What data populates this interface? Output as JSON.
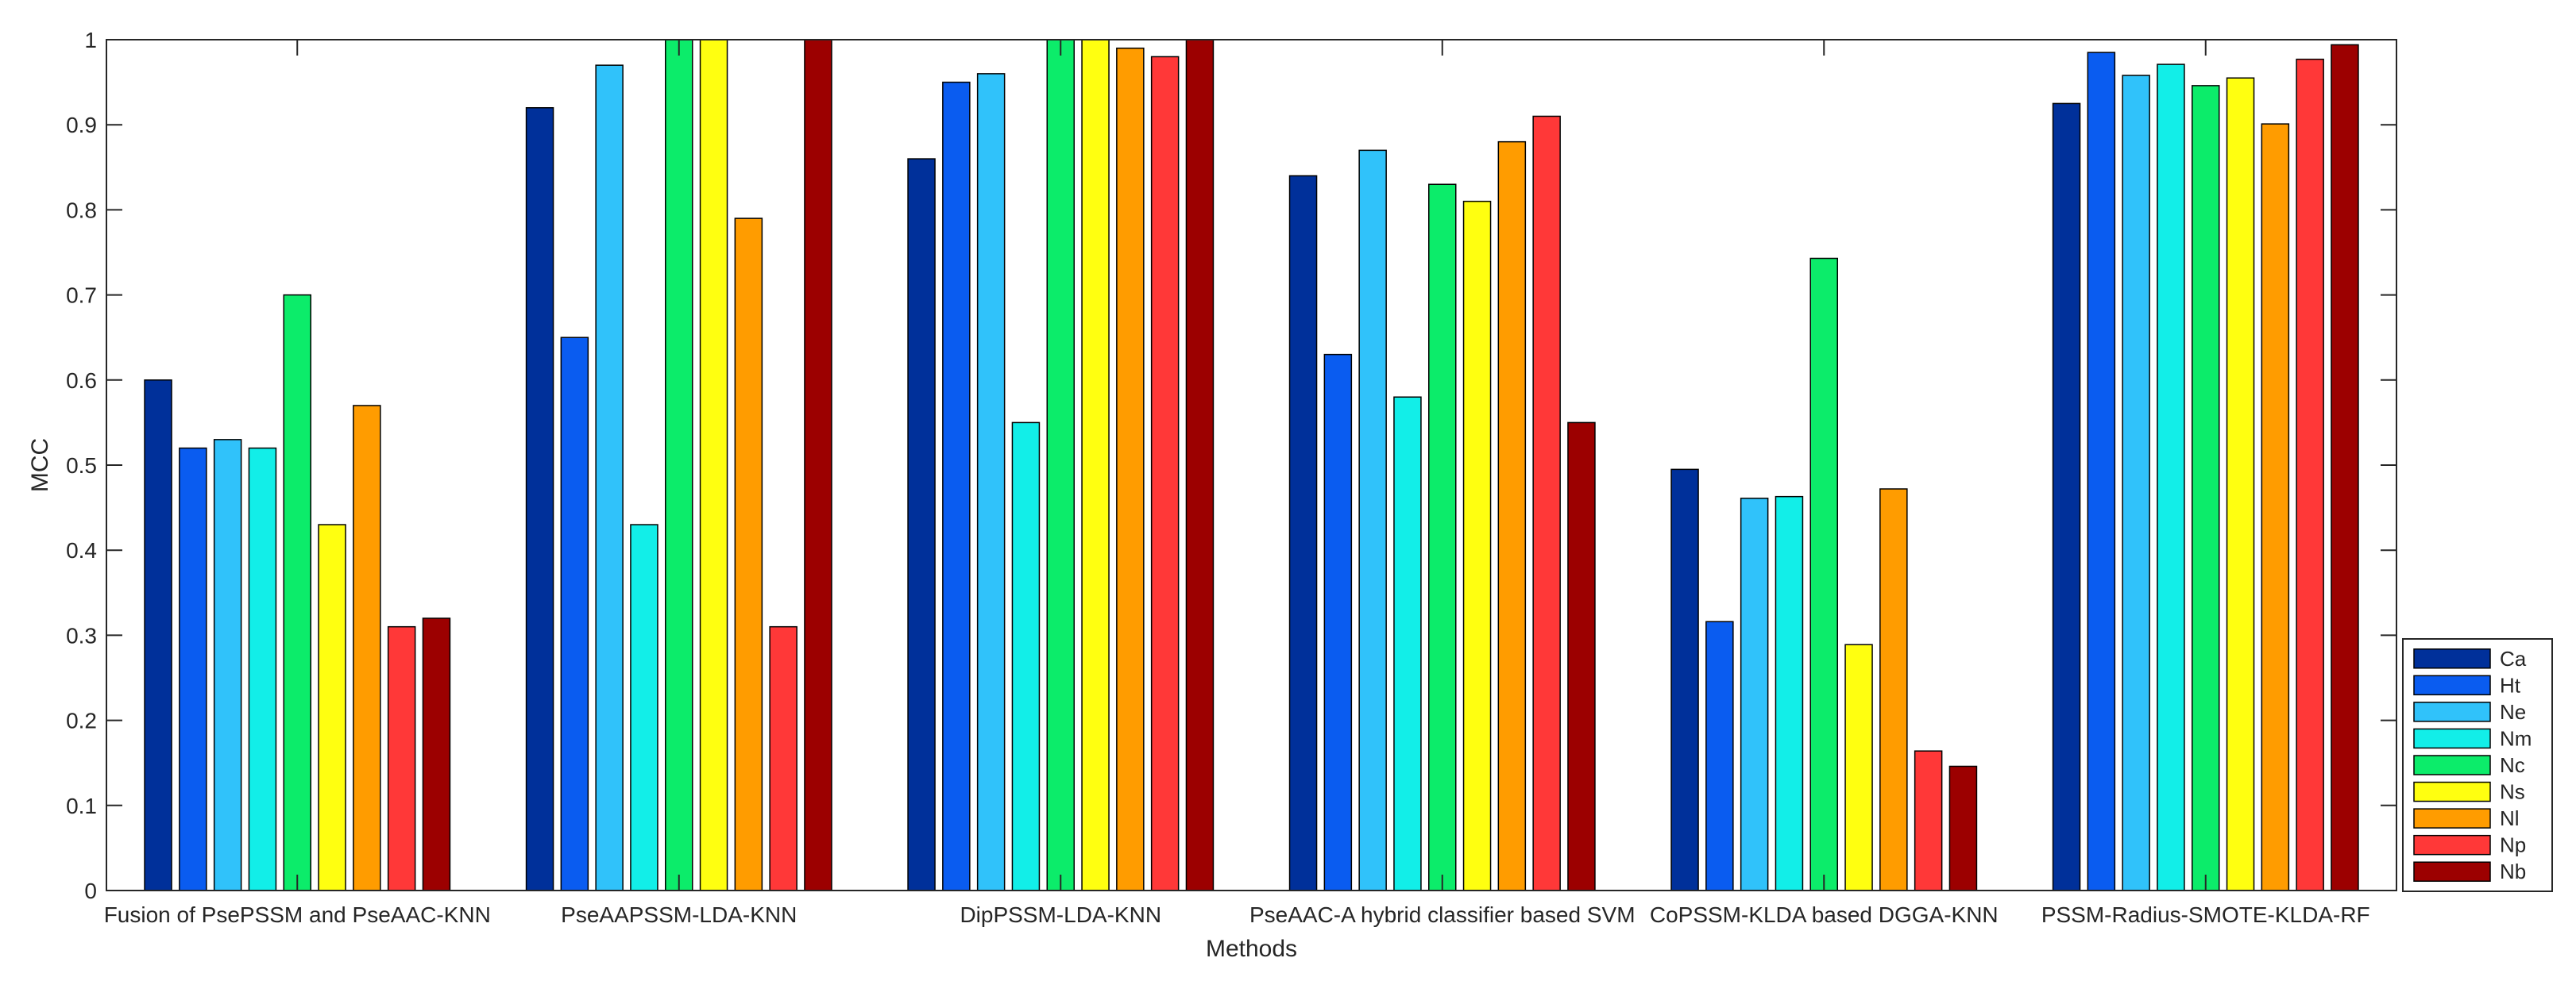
{
  "chart_data": {
    "type": "bar",
    "title": "",
    "xlabel": "Methods",
    "ylabel": "MCC",
    "ylim": [
      0,
      1
    ],
    "yticks": [
      0,
      0.1,
      0.2,
      0.3,
      0.4,
      0.5,
      0.6,
      0.7,
      0.8,
      0.9,
      1
    ],
    "ytick_labels": [
      "0",
      "0.1",
      "0.2",
      "0.3",
      "0.4",
      "0.5",
      "0.6",
      "0.7",
      "0.8",
      "0.9",
      "1"
    ],
    "grid": false,
    "legend_position": "bottom-right",
    "categories": [
      "Fusion of PsePSSM and PseAAC-KNN",
      "PseAAPSSM-LDA-KNN",
      "DipPSSM-LDA-KNN",
      "PseAAC-A hybrid classifier based SVM",
      "CoPSSM-KLDA based DGGA-KNN",
      "PSSM-Radius-SMOTE-KLDA-RF"
    ],
    "series": [
      {
        "name": "Ca",
        "color": "#00309a",
        "values": [
          0.6,
          0.92,
          0.86,
          0.84,
          0.495,
          0.925
        ]
      },
      {
        "name": "Ht",
        "color": "#0a5cf0",
        "values": [
          0.52,
          0.65,
          0.95,
          0.63,
          0.316,
          0.985
        ]
      },
      {
        "name": "Ne",
        "color": "#30c2fa",
        "values": [
          0.53,
          0.97,
          0.96,
          0.87,
          0.461,
          0.958
        ]
      },
      {
        "name": "Nm",
        "color": "#12eee8",
        "values": [
          0.52,
          0.43,
          0.55,
          0.58,
          0.463,
          0.971
        ]
      },
      {
        "name": "Nc",
        "color": "#0cec6a",
        "values": [
          0.7,
          1.0,
          1.0,
          0.83,
          0.743,
          0.946
        ]
      },
      {
        "name": "Ns",
        "color": "#ffff10",
        "values": [
          0.43,
          1.0,
          1.0,
          0.81,
          0.289,
          0.955
        ]
      },
      {
        "name": "Nl",
        "color": "#ff9c00",
        "values": [
          0.57,
          0.79,
          0.99,
          0.88,
          0.472,
          0.901
        ]
      },
      {
        "name": "Np",
        "color": "#ff3838",
        "values": [
          0.31,
          0.31,
          0.98,
          0.91,
          0.164,
          0.977
        ]
      },
      {
        "name": "Nb",
        "color": "#9c0000",
        "values": [
          0.32,
          1.0,
          1.0,
          0.55,
          0.146,
          0.994
        ]
      }
    ]
  }
}
